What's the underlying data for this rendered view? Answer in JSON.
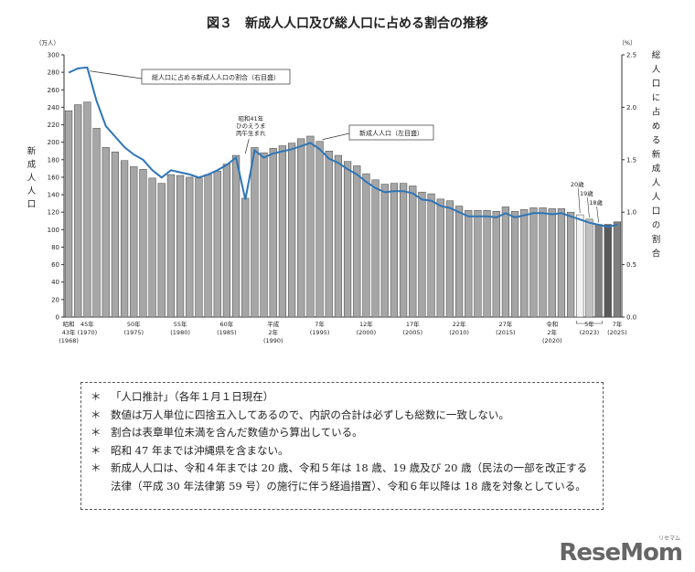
{
  "chart_data": {
    "type": "bar_line",
    "title": "図３　新成人人口及び総人口に占める割合の推移",
    "y_label": "新成人人口",
    "y_unit": "（万人）",
    "y2_label": "総人口に占める新成人人口の割合",
    "y2_unit": "（%）",
    "categories": [
      [
        "昭和",
        "43年",
        "(1968)"
      ],
      null,
      [
        "45年",
        "(1970)"
      ],
      null,
      null,
      null,
      null,
      [
        "50年",
        "(1975)"
      ],
      null,
      null,
      null,
      null,
      [
        "55年",
        "(1980)"
      ],
      null,
      null,
      null,
      null,
      [
        "60年",
        "(1985)"
      ],
      null,
      null,
      null,
      null,
      [
        "平成",
        "2年",
        "(1990)"
      ],
      null,
      null,
      null,
      null,
      [
        "7年",
        "(1995)"
      ],
      null,
      null,
      null,
      null,
      [
        "12年",
        "(2000)"
      ],
      null,
      null,
      null,
      null,
      [
        "17年",
        "(2005)"
      ],
      null,
      null,
      null,
      null,
      [
        "22年",
        "(2010)"
      ],
      null,
      null,
      null,
      null,
      [
        "27年",
        "(2015)"
      ],
      null,
      null,
      null,
      null,
      [
        "令和",
        "2年",
        "(2020)"
      ],
      null,
      null,
      null,
      [
        "5年",
        "(2023)"
      ],
      null,
      null,
      [
        "7年",
        "(2025)"
      ]
    ],
    "series": [
      {
        "name": "新成人人口（左目盛）",
        "color": "#a6a6a6",
        "colors": {
          "55": "#f2f2f2",
          "56": "#bfbfbf",
          "57": "#808080",
          "58": "#595959",
          "59": "#7f7f7f"
        },
        "values": [
          236,
          243,
          246,
          216,
          194,
          189,
          179,
          172,
          169,
          159,
          153,
          163,
          162,
          160,
          159,
          163,
          167,
          175,
          185,
          136,
          194,
          188,
          193,
          196,
          199,
          204,
          207,
          201,
          190,
          185,
          178,
          173,
          164,
          157,
          152,
          153,
          153,
          150,
          143,
          141,
          135,
          133,
          127,
          122,
          122,
          122,
          121,
          126,
          121,
          123,
          125,
          125,
          124,
          124,
          120,
          117,
          112,
          106,
          106,
          109
        ]
      },
      {
        "name": "総人口に占める新成人人口の割合（右目盛）",
        "color": "#2e75b6",
        "axis": "y2",
        "values": [
          2.33,
          2.37,
          2.38,
          2.06,
          1.82,
          1.72,
          1.62,
          1.55,
          1.5,
          1.4,
          1.33,
          1.4,
          1.38,
          1.36,
          1.33,
          1.36,
          1.4,
          1.45,
          1.52,
          1.12,
          1.59,
          1.52,
          1.56,
          1.58,
          1.6,
          1.63,
          1.66,
          1.6,
          1.51,
          1.47,
          1.41,
          1.36,
          1.29,
          1.23,
          1.19,
          1.2,
          1.2,
          1.18,
          1.12,
          1.11,
          1.06,
          1.04,
          1.0,
          0.96,
          0.96,
          0.96,
          0.95,
          0.99,
          0.95,
          0.97,
          0.99,
          0.99,
          0.98,
          0.99,
          0.96,
          0.93,
          0.9,
          0.88,
          0.86,
          0.88
        ]
      }
    ],
    "ylim": [
      0,
      300
    ],
    "yticks": [
      0,
      20,
      40,
      60,
      80,
      100,
      120,
      140,
      160,
      180,
      200,
      220,
      240,
      260,
      280,
      300
    ],
    "y2lim": [
      0,
      2.5
    ],
    "y2ticks": [
      {
        "value": 0,
        "label": "0.0"
      },
      0.5,
      {
        "value": 1,
        "label": "1.0"
      },
      1.5,
      {
        "value": 2,
        "label": "2.0"
      },
      2.5
    ],
    "annotations": [
      {
        "text": "総人口に占める新成人人口の割合（右目盛）"
      },
      {
        "text": "新成人人口（左目盛）"
      },
      {
        "lines": [
          "昭和41年",
          "ひのえうま",
          "丙午生まれ"
        ]
      },
      {
        "text": "20歳"
      },
      {
        "text": "19歳"
      },
      {
        "text": "18歳"
      }
    ]
  },
  "notes": [
    {
      "mark": "＊",
      "text": "「人口推計」（各年１月１日現在）"
    },
    {
      "mark": "＊",
      "text": "数値は万人単位に四捨五入してあるので、内訳の合計は必ずしも総数に一致しない。"
    },
    {
      "mark": "＊",
      "text": "割合は表章単位未満を含んだ数値から算出している。"
    },
    {
      "mark": "＊",
      "text": "昭和 47 年までは沖縄県を含まない。"
    },
    {
      "mark": "＊",
      "text": "新成人人口は、令和４年までは 20 歳、令和５年は 18 歳、19 歳及び 20 歳（民法の一部を改正する法律（平成 30 年法律第 59 号）の施行に伴う経過措置）、令和６年以降は 18 歳を対象としている。"
    }
  ],
  "watermark": {
    "text": "ReseMom",
    "kana": "リセマム"
  }
}
